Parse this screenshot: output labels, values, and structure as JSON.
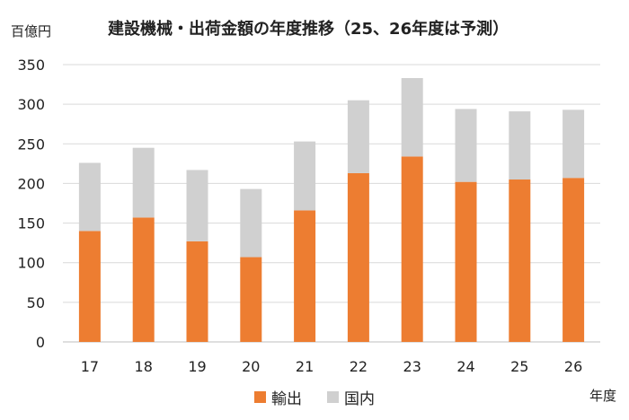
{
  "chart_data": {
    "type": "bar",
    "stacked": true,
    "title": "建設機械・出荷金額の年度推移（25、26年度は予測）",
    "ylabel": "百億円",
    "xlabel": "年度",
    "categories": [
      "17",
      "18",
      "19",
      "20",
      "21",
      "22",
      "23",
      "24",
      "25",
      "26"
    ],
    "series": [
      {
        "name": "輸出",
        "values": [
          140,
          157,
          127,
          107,
          166,
          213,
          234,
          202,
          205,
          207
        ]
      },
      {
        "name": "国内",
        "values": [
          86,
          88,
          90,
          86,
          87,
          92,
          99,
          92,
          86,
          86
        ]
      }
    ],
    "ylim": [
      0,
      350
    ],
    "yticks": [
      "0",
      "50",
      "100",
      "150",
      "200",
      "250",
      "300",
      "350"
    ],
    "grid": true,
    "legend_position": "bottom",
    "colors": {
      "輸出": "#ED7D31",
      "国内": "#D0D0D0",
      "grid": "#D9D9D9",
      "axis": "#BFBFBF"
    }
  }
}
